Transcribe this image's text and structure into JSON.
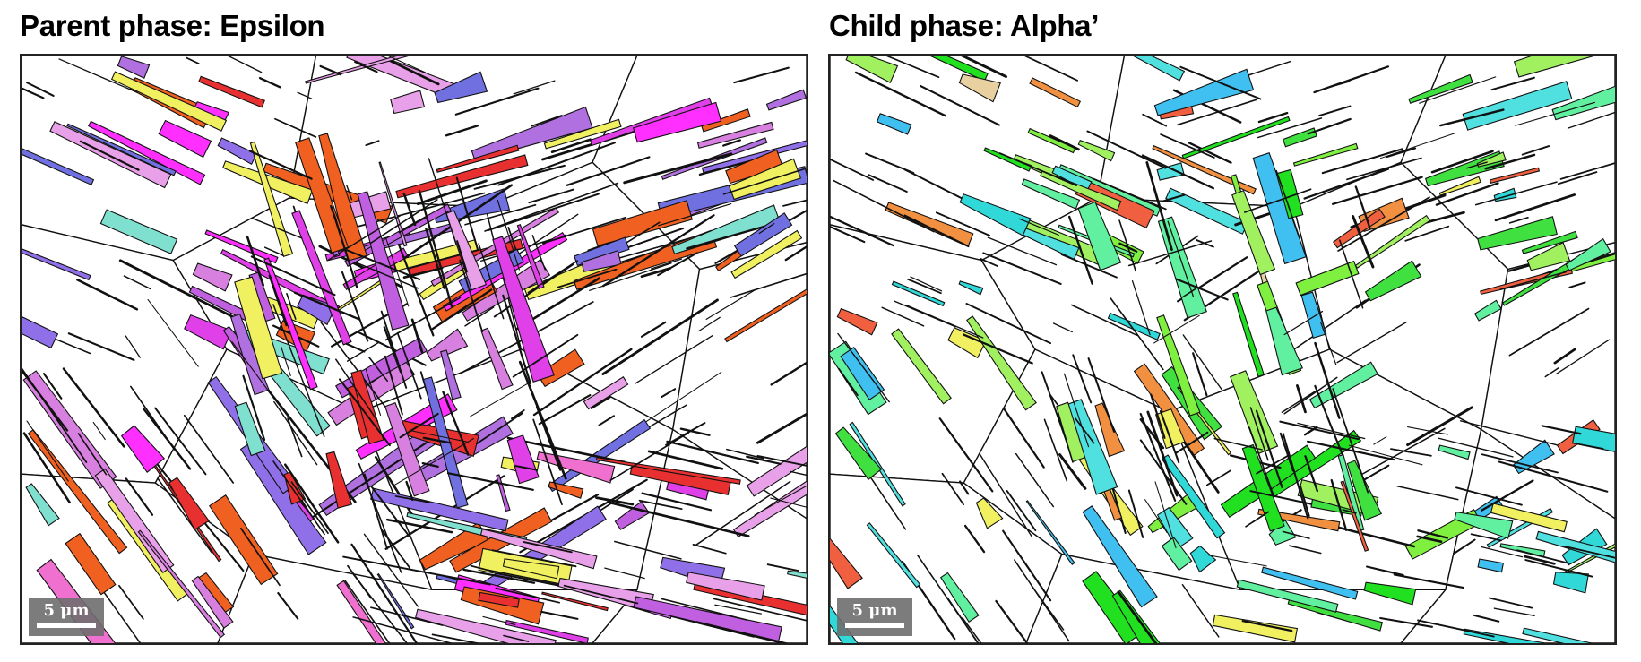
{
  "figure": {
    "left_panel": {
      "title": "Parent phase: Epsilon",
      "scale_label": "5 μm",
      "palette": [
        "#e040e8",
        "#c060e0",
        "#ff30ff",
        "#d880e0",
        "#b070e0",
        "#f070d0",
        "#9070e8",
        "#e8a0e8",
        "#7070e0",
        "#e83030",
        "#f06020",
        "#80e0d0",
        "#f0f060"
      ]
    },
    "right_panel": {
      "title": "Child phase: Alpha’",
      "scale_label": "5 μm",
      "palette": [
        "#40e040",
        "#80f040",
        "#30d8d8",
        "#60f0a0",
        "#f09040",
        "#a0f060",
        "#40c0f0",
        "#f0f060",
        "#e8d0a0",
        "#20e020",
        "#50e0e0",
        "#f06040"
      ]
    }
  }
}
